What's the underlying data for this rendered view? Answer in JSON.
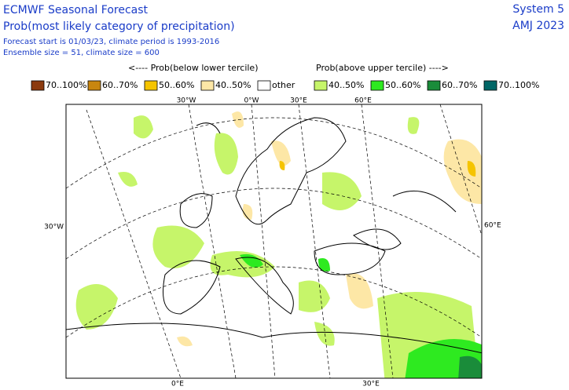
{
  "header": {
    "title": "ECMWF Seasonal Forecast",
    "subtitle": "Prob(most likely category of precipitation)",
    "forecast_start": "Forecast start is 01/03/23, climate period is 1993-2016",
    "ensemble": "Ensemble size = 51, climate size = 600",
    "system": "System 5",
    "period": "AMJ 2023"
  },
  "legend": {
    "below_label": "<---- Prob(below lower tercile)",
    "above_label": "Prob(above upper tercile) ---->",
    "items": [
      {
        "label": "70..100%",
        "color": "#8b3a0e"
      },
      {
        "label": "60..70%",
        "color": "#c8860f"
      },
      {
        "label": "50..60%",
        "color": "#f5c400"
      },
      {
        "label": "40..50%",
        "color": "#fde7a6"
      },
      {
        "label": "other",
        "color": "#ffffff"
      },
      {
        "label": "40..50%",
        "color": "#c6f56a"
      },
      {
        "label": "50..60%",
        "color": "#2eea20"
      },
      {
        "label": "60..70%",
        "color": "#1a8c3a"
      },
      {
        "label": "70..100%",
        "color": "#006666"
      }
    ]
  },
  "map": {
    "top_labels": [
      "30°W",
      "0°W",
      "30°E",
      "60°E"
    ],
    "left_label": "30°W",
    "right_label": "60°E",
    "bottom_labels": [
      "0°E",
      "30°E"
    ]
  }
}
